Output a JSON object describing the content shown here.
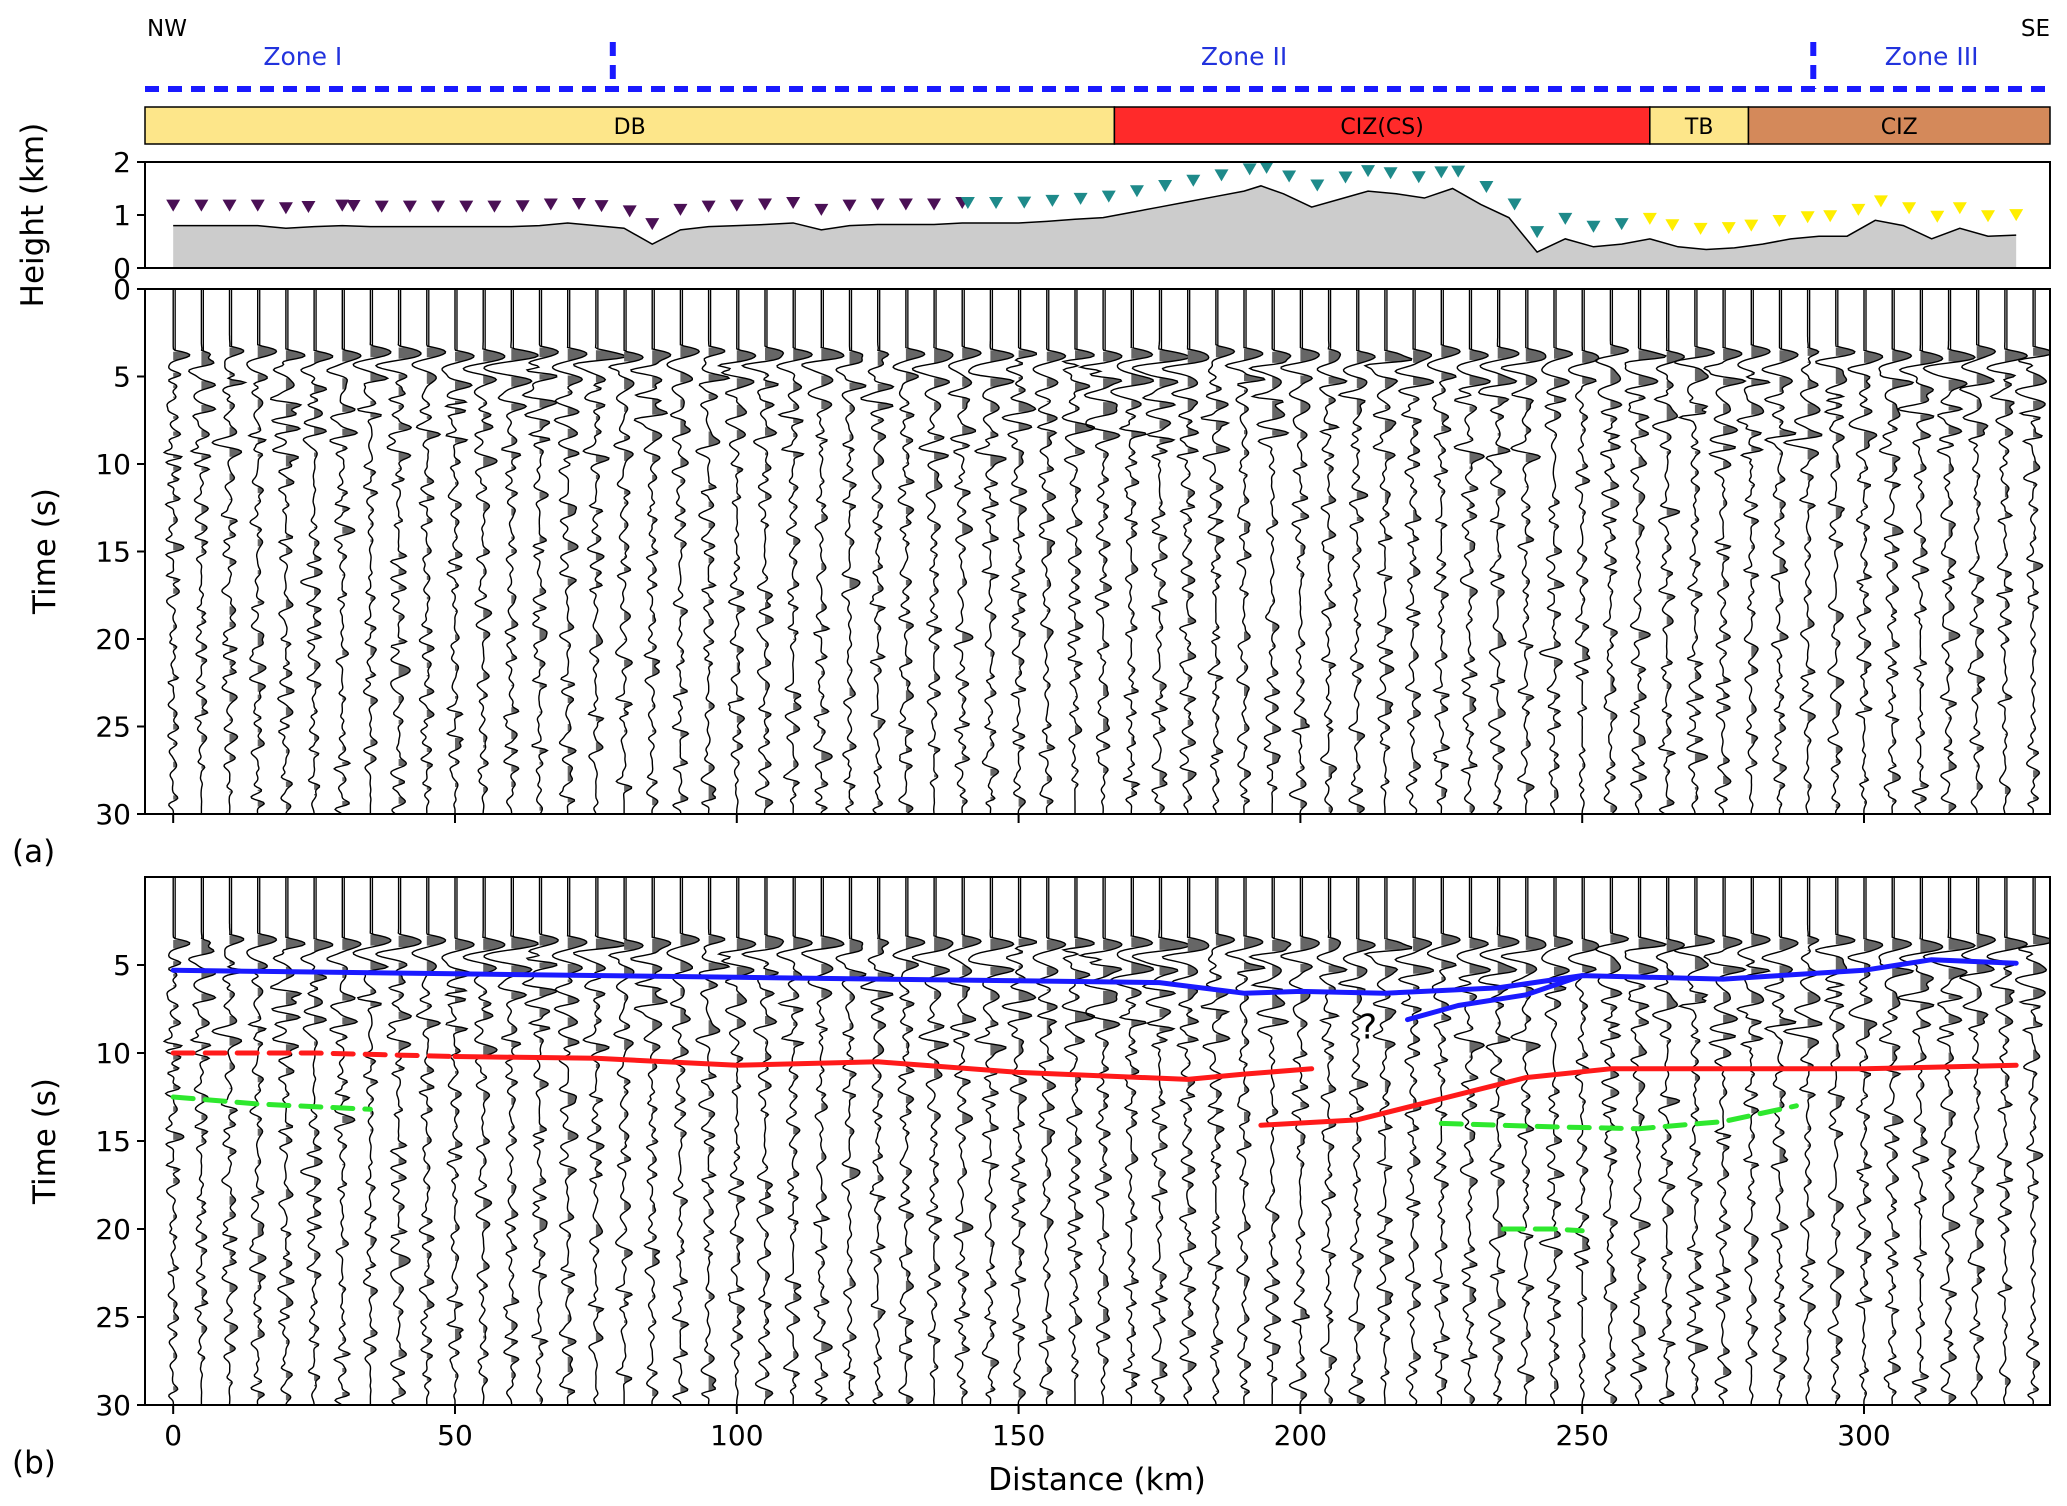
{
  "header": {
    "left": "NW",
    "right": "SE",
    "zones": [
      {
        "label": "Zone I",
        "x_km": 23
      },
      {
        "label": "Zone II",
        "x_km": 190
      },
      {
        "label": "Zone III",
        "x_km": 312
      }
    ],
    "zone_boundaries_km": [
      78,
      291
    ],
    "zone_line_color": "#1a1aff"
  },
  "geology": [
    {
      "label": "DB",
      "from_km": -5,
      "to_km": 167,
      "color": "#fde68a"
    },
    {
      "label": "CIZ(CS)",
      "from_km": 167,
      "to_km": 262,
      "color": "#ff2a2a"
    },
    {
      "label": "TB",
      "from_km": 262,
      "to_km": 279.5,
      "color": "#fde68a"
    },
    {
      "label": "CIZ",
      "from_km": 279.5,
      "to_km": 333,
      "color": "#d4895a"
    }
  ],
  "chart_data": [
    {
      "type": "area",
      "panel": "topography",
      "ylabel": "Height (km)",
      "ylim": [
        0,
        2
      ],
      "yticks": [
        0,
        1,
        2
      ],
      "xlim": [
        -5,
        333
      ],
      "fill_color": "#cccccc",
      "x": [
        0,
        5,
        10,
        15,
        20,
        25,
        30,
        35,
        40,
        45,
        50,
        55,
        60,
        65,
        70,
        75,
        80,
        85,
        90,
        95,
        100,
        105,
        110,
        115,
        120,
        125,
        130,
        135,
        140,
        145,
        150,
        155,
        160,
        165,
        170,
        175,
        180,
        185,
        190,
        193,
        197,
        202,
        207,
        212,
        217,
        222,
        227,
        232,
        237,
        242,
        247,
        252,
        257,
        262,
        267,
        272,
        277,
        282,
        287,
        292,
        297,
        302,
        307,
        312,
        317,
        322,
        327
      ],
      "y": [
        0.8,
        0.8,
        0.8,
        0.8,
        0.75,
        0.78,
        0.8,
        0.78,
        0.78,
        0.78,
        0.78,
        0.78,
        0.78,
        0.8,
        0.85,
        0.8,
        0.75,
        0.45,
        0.72,
        0.78,
        0.8,
        0.82,
        0.85,
        0.72,
        0.8,
        0.82,
        0.82,
        0.82,
        0.85,
        0.85,
        0.85,
        0.88,
        0.92,
        0.95,
        1.05,
        1.15,
        1.25,
        1.35,
        1.45,
        1.55,
        1.4,
        1.15,
        1.3,
        1.45,
        1.4,
        1.32,
        1.5,
        1.2,
        0.95,
        0.3,
        0.55,
        0.4,
        0.45,
        0.55,
        0.4,
        0.35,
        0.38,
        0.45,
        0.55,
        0.6,
        0.6,
        0.9,
        0.8,
        0.55,
        0.75,
        0.6,
        0.62
      ],
      "stations": [
        {
          "group": "Zone I",
          "color": "#4a1055",
          "x": [
            0,
            5,
            10,
            15,
            20,
            24,
            30,
            32,
            37,
            42,
            47,
            52,
            57,
            62,
            67,
            72,
            76,
            81,
            85,
            90,
            95,
            100,
            105,
            110,
            115,
            120,
            125,
            130,
            135,
            140
          ]
        },
        {
          "group": "Zone II",
          "color": "#1e8a8a",
          "x": [
            141,
            146,
            151,
            156,
            161,
            166,
            171,
            176,
            181,
            186,
            191,
            194,
            198,
            203,
            208,
            212,
            216,
            221,
            225,
            228,
            233,
            238,
            242,
            247,
            252,
            257
          ]
        },
        {
          "group": "Zone III",
          "color": "#ffee00",
          "x": [
            262,
            266,
            271,
            276,
            280,
            285,
            290,
            294,
            299,
            303,
            308,
            313,
            317,
            322,
            327
          ]
        }
      ]
    },
    {
      "type": "line",
      "panel": "(a)",
      "title": "",
      "ylabel": "Time (s)",
      "ylim": [
        0,
        30
      ],
      "yticks": [
        0,
        5,
        10,
        15,
        20,
        25,
        30
      ],
      "xlim": [
        -5,
        333
      ],
      "xticks": [
        0,
        50,
        100,
        150,
        200,
        250,
        300
      ],
      "trace_count": 67,
      "trace_spacing_km": 5,
      "interpretation": []
    },
    {
      "type": "line",
      "panel": "(b)",
      "xlabel": "Distance (km)",
      "ylabel": "Time (s)",
      "ylim": [
        0,
        30
      ],
      "yticks": [
        5,
        10,
        15,
        20,
        25,
        30
      ],
      "xlim": [
        -5,
        333
      ],
      "xticks": [
        0,
        50,
        100,
        150,
        200,
        250,
        300
      ],
      "trace_count": 67,
      "trace_spacing_km": 5,
      "interpretation": [
        {
          "color": "#1a1aff",
          "style": "solid",
          "points": [
            [
              0,
              5.3
            ],
            [
              50,
              5.5
            ],
            [
              100,
              5.7
            ],
            [
              150,
              5.9
            ],
            [
              175,
              6.0
            ],
            [
              190,
              6.6
            ],
            [
              200,
              6.5
            ],
            [
              215,
              6.6
            ],
            [
              235,
              6.3
            ],
            [
              250,
              5.6
            ],
            [
              275,
              5.8
            ],
            [
              300,
              5.3
            ],
            [
              312,
              4.7
            ],
            [
              327,
              4.9
            ]
          ]
        },
        {
          "color": "#1a1aff",
          "style": "solid",
          "points": [
            [
              219,
              8.1
            ],
            [
              228,
              7.3
            ],
            [
              240,
              6.7
            ],
            [
              250,
              5.6
            ]
          ]
        },
        {
          "color": "#ff1a1a",
          "style": "dashed",
          "points": [
            [
              0,
              10.0
            ],
            [
              25,
              10.0
            ],
            [
              50,
              10.2
            ]
          ]
        },
        {
          "color": "#ff1a1a",
          "style": "solid",
          "points": [
            [
              50,
              10.2
            ],
            [
              75,
              10.3
            ],
            [
              100,
              10.7
            ],
            [
              125,
              10.5
            ],
            [
              150,
              11.1
            ],
            [
              180,
              11.5
            ],
            [
              190,
              11.2
            ],
            [
              202,
              10.9
            ]
          ]
        },
        {
          "color": "#ff1a1a",
          "style": "solid",
          "points": [
            [
              193,
              14.1
            ],
            [
              210,
              13.8
            ],
            [
              225,
              12.6
            ],
            [
              240,
              11.4
            ],
            [
              255,
              10.9
            ],
            [
              280,
              10.9
            ],
            [
              300,
              10.9
            ],
            [
              327,
              10.7
            ]
          ]
        },
        {
          "color": "#2ee82e",
          "style": "dashed",
          "points": [
            [
              0,
              12.5
            ],
            [
              15,
              12.9
            ],
            [
              35,
              13.2
            ]
          ]
        },
        {
          "color": "#2ee82e",
          "style": "dashed",
          "points": [
            [
              225,
              14.0
            ],
            [
              245,
              14.2
            ],
            [
              260,
              14.3
            ],
            [
              275,
              13.9
            ],
            [
              288,
              13.0
            ]
          ]
        },
        {
          "color": "#2ee82e",
          "style": "dashed",
          "points": [
            [
              236,
              20.0
            ],
            [
              245,
              20.0
            ],
            [
              250,
              20.1
            ]
          ]
        }
      ],
      "question_mark": {
        "label": "?",
        "x_km": 212,
        "t_s": 8.5,
        "color": "#1a1aff"
      }
    }
  ]
}
